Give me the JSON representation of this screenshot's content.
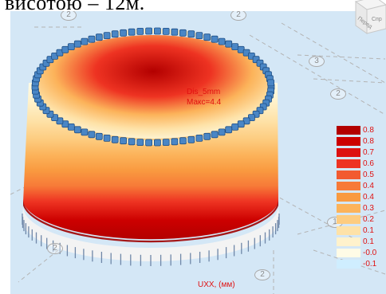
{
  "doc_text": "висотою – 12м.",
  "legend": {
    "colors": [
      "#b30000",
      "#cc0000",
      "#dd1111",
      "#ee3322",
      "#f25a30",
      "#f77a38",
      "#f99a40",
      "#fcb35a",
      "#fdcc80",
      "#fee2a8",
      "#fff2cc",
      "#fffbe6",
      "#cfeeff"
    ],
    "labels": [
      "0.8",
      "0.8",
      "0.7",
      "0.6",
      "0.5",
      "0.4",
      "0.4",
      "0.3",
      "0.2",
      "0.1",
      "0.1",
      "-0.0",
      "-0.1"
    ]
  },
  "units_label": "UXX, (мм)",
  "annotation": {
    "line1": "Dis_5mm",
    "line2": "Макс=4.4"
  },
  "view_cube": {
    "face1": "Перед",
    "face2": "Спр"
  },
  "grid_markers": [
    "2",
    "2",
    "3",
    "2",
    "1",
    "2",
    "2"
  ],
  "colors": {
    "background": "#d4e7f6",
    "accent": "#e01010",
    "support": "#4a86c5"
  }
}
